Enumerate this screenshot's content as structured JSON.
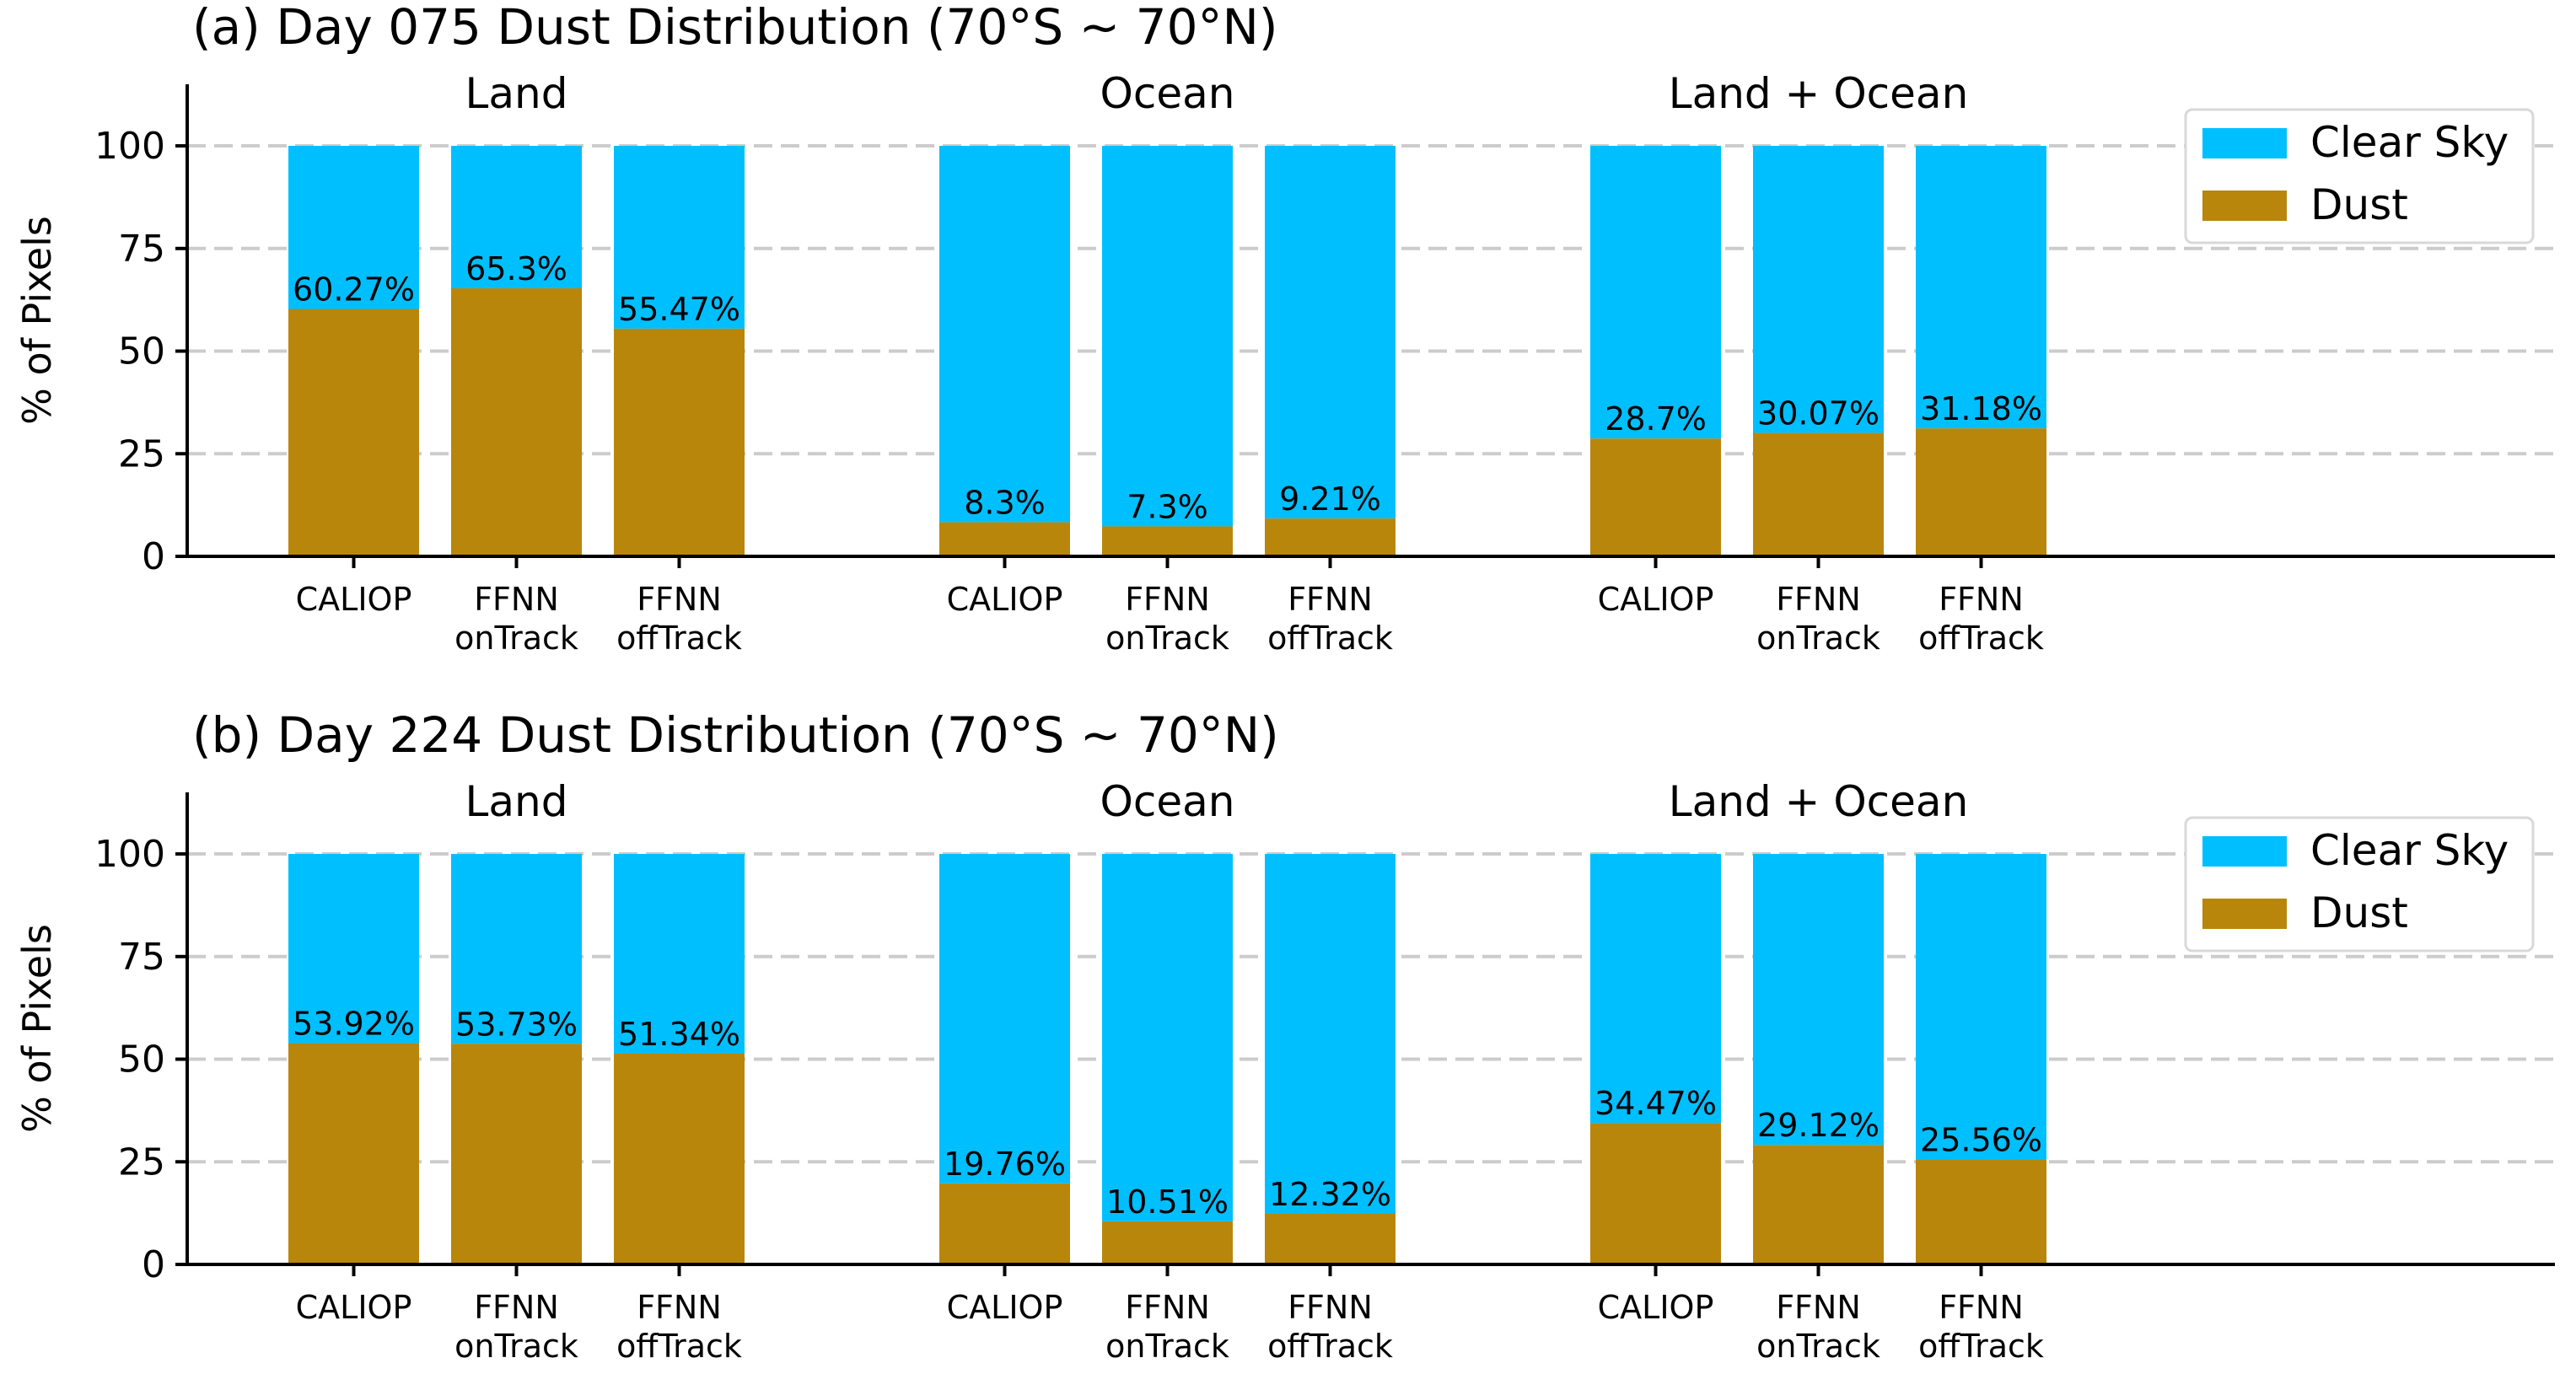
{
  "colors": {
    "clear_sky": "#00BFFF",
    "dust": "#B8860B",
    "grid": "#cccccc"
  },
  "chart_data": [
    {
      "type": "bar",
      "stacked": true,
      "title": "(a) Day 075 Dust Distribution (70°S ~ 70°N)",
      "ylabel": "% of Pixels",
      "ylim": [
        0,
        115
      ],
      "yticks": [
        0,
        25,
        50,
        75,
        100
      ],
      "grid": "horizontal dashed",
      "legend": {
        "position": "top-right",
        "entries": [
          "Clear Sky",
          "Dust"
        ]
      },
      "groups": [
        {
          "name": "Land",
          "categories": [
            "CALIOP",
            "FFNN\nonTrack",
            "FFNN\noffTrack"
          ],
          "dust": [
            60.27,
            65.3,
            55.47
          ],
          "labels": [
            "60.27%",
            "65.3%",
            "55.47%"
          ]
        },
        {
          "name": "Ocean",
          "categories": [
            "CALIOP",
            "FFNN\nonTrack",
            "FFNN\noffTrack"
          ],
          "dust": [
            8.3,
            7.3,
            9.21
          ],
          "labels": [
            "8.3%",
            "7.3%",
            "9.21%"
          ]
        },
        {
          "name": "Land + Ocean",
          "categories": [
            "CALIOP",
            "FFNN\nonTrack",
            "FFNN\noffTrack"
          ],
          "dust": [
            28.7,
            30.07,
            31.18
          ],
          "labels": [
            "28.7%",
            "30.07%",
            "31.18%"
          ]
        }
      ],
      "series": [
        {
          "name": "Dust",
          "note": "bottom segment, value = dust %"
        },
        {
          "name": "Clear Sky",
          "note": "top segment, fills to 100"
        }
      ]
    },
    {
      "type": "bar",
      "stacked": true,
      "title": "(b) Day 224 Dust Distribution (70°S ~ 70°N)",
      "ylabel": "% of Pixels",
      "ylim": [
        0,
        115
      ],
      "yticks": [
        0,
        25,
        50,
        75,
        100
      ],
      "grid": "horizontal dashed",
      "legend": {
        "position": "top-right",
        "entries": [
          "Clear Sky",
          "Dust"
        ]
      },
      "groups": [
        {
          "name": "Land",
          "categories": [
            "CALIOP",
            "FFNN\nonTrack",
            "FFNN\noffTrack"
          ],
          "dust": [
            53.92,
            53.73,
            51.34
          ],
          "labels": [
            "53.92%",
            "53.73%",
            "51.34%"
          ]
        },
        {
          "name": "Ocean",
          "categories": [
            "CALIOP",
            "FFNN\nonTrack",
            "FFNN\noffTrack"
          ],
          "dust": [
            19.76,
            10.51,
            12.32
          ],
          "labels": [
            "19.76%",
            "10.51%",
            "12.32%"
          ]
        },
        {
          "name": "Land + Ocean",
          "categories": [
            "CALIOP",
            "FFNN\nonTrack",
            "FFNN\noffTrack"
          ],
          "dust": [
            34.47,
            29.12,
            25.56
          ],
          "labels": [
            "34.47%",
            "29.12%",
            "25.56%"
          ]
        }
      ],
      "series": [
        {
          "name": "Dust",
          "note": "bottom segment, value = dust %"
        },
        {
          "name": "Clear Sky",
          "note": "top segment, fills to 100"
        }
      ]
    }
  ]
}
